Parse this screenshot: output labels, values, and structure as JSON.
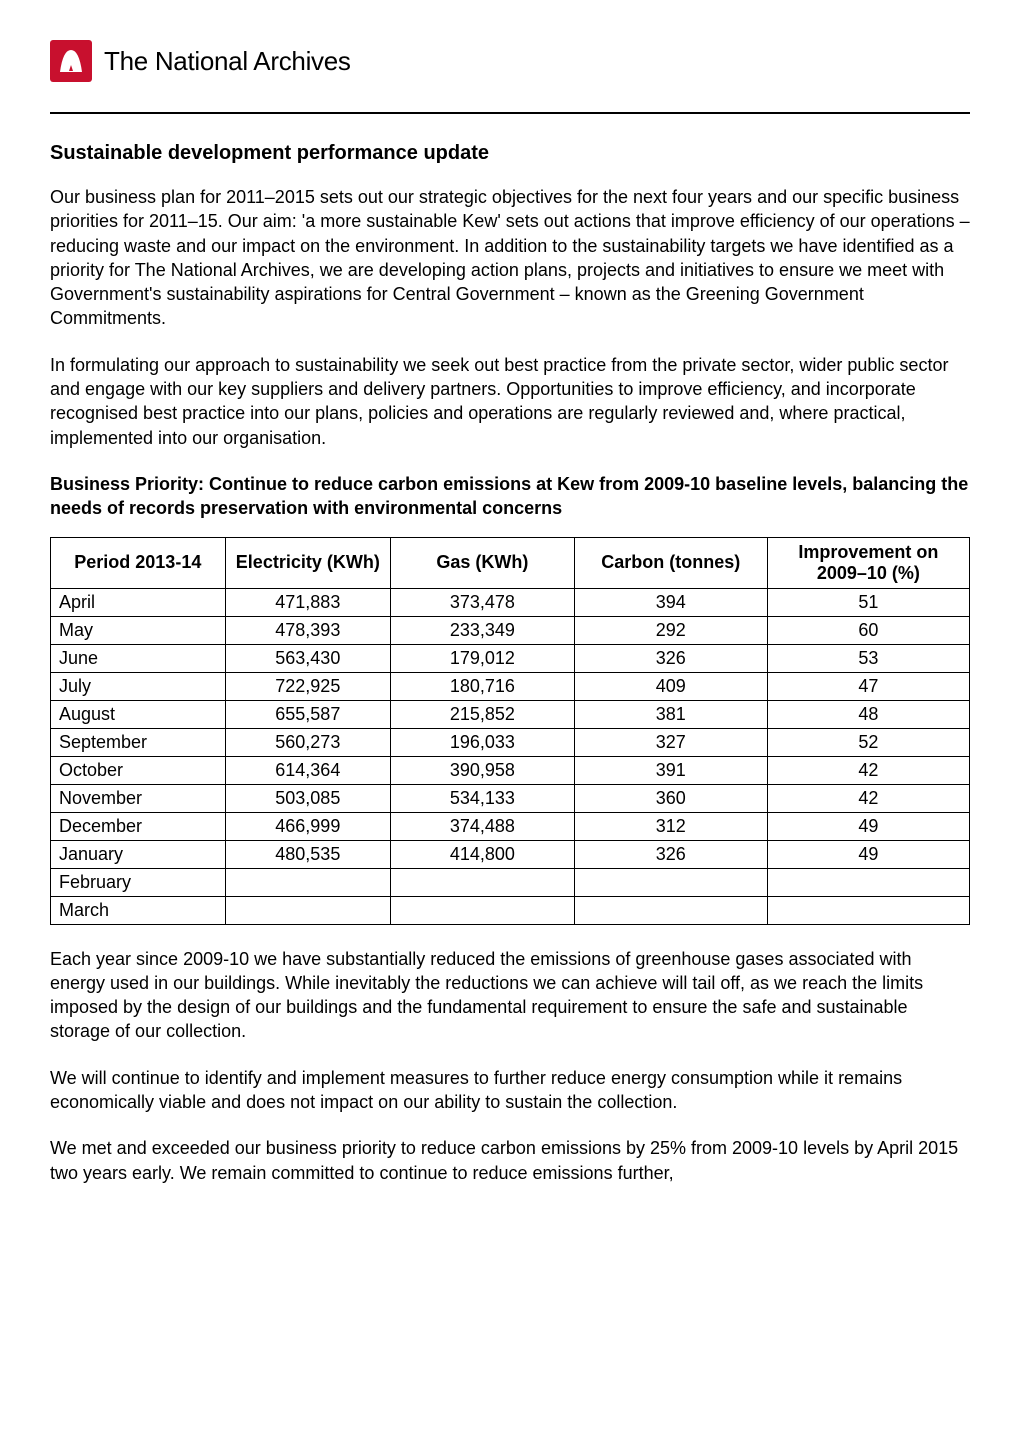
{
  "header": {
    "logo_text": "The National Archives",
    "logo_icon_color": "#c8102e"
  },
  "title": "Sustainable development performance update",
  "paragraphs": {
    "p1": "Our business plan for 2011–2015 sets out our strategic objectives for the next four years and our specific business priorities for 2011–15. Our aim: 'a more sustainable Kew' sets out actions that improve efficiency of our operations – reducing waste and our impact on the environment. In addition to the sustainability targets we have identified as a priority for The National Archives, we are developing action plans, projects and initiatives to ensure we meet with Government's sustainability aspirations for Central Government – known as the Greening Government Commitments.",
    "p2": "In formulating our approach to sustainability we seek out best practice from the private sector, wider public sector and engage with our key suppliers and delivery partners.  Opportunities to improve efficiency, and incorporate recognised best practice into our plans, policies and operations are regularly reviewed and, where practical, implemented into our organisation.",
    "p3": "Each year since 2009-10 we have substantially reduced the emissions of greenhouse gases associated with energy used in our buildings.  While inevitably the reductions we can achieve will tail off, as we reach the limits imposed by the design of our buildings and the fundamental requirement to ensure the safe and sustainable storage of our collection.",
    "p4": "We will continue to identify and implement measures to further reduce energy consumption while it remains economically viable and does not impact on our ability to sustain the collection.",
    "p5": "We met and exceeded our business priority to reduce carbon emissions by 25% from 2009-10 levels by April 2015 two years early. We remain committed to continue to reduce emissions further,"
  },
  "subtitle": "Business Priority: Continue to reduce carbon emissions at Kew from 2009-10 baseline levels, balancing the needs of records preservation with environmental concerns",
  "table": {
    "type": "table",
    "border_color": "#000000",
    "background_color": "#ffffff",
    "header_fontsize": 18,
    "cell_fontsize": 18,
    "columns": [
      "Period 2013-14",
      "Electricity (KWh)",
      "Gas (KWh)",
      "Carbon (tonnes)",
      "Improvement on 2009–10 (%)"
    ],
    "rows": [
      {
        "period": "April",
        "electricity": "471,883",
        "gas": "373,478",
        "carbon": "394",
        "improvement": "51"
      },
      {
        "period": "May",
        "electricity": "478,393",
        "gas": "233,349",
        "carbon": "292",
        "improvement": "60"
      },
      {
        "period": "June",
        "electricity": "563,430",
        "gas": "179,012",
        "carbon": "326",
        "improvement": "53"
      },
      {
        "period": "July",
        "electricity": "722,925",
        "gas": "180,716",
        "carbon": "409",
        "improvement": "47"
      },
      {
        "period": "August",
        "electricity": "655,587",
        "gas": "215,852",
        "carbon": "381",
        "improvement": "48"
      },
      {
        "period": "September",
        "electricity": "560,273",
        "gas": "196,033",
        "carbon": "327",
        "improvement": "52"
      },
      {
        "period": "October",
        "electricity": "614,364",
        "gas": "390,958",
        "carbon": "391",
        "improvement": "42"
      },
      {
        "period": "November",
        "electricity": "503,085",
        "gas": "534,133",
        "carbon": "360",
        "improvement": "42"
      },
      {
        "period": "December",
        "electricity": "466,999",
        "gas": "374,488",
        "carbon": "312",
        "improvement": "49"
      },
      {
        "period": "January",
        "electricity": "480,535",
        "gas": "414,800",
        "carbon": "326",
        "improvement": "49"
      },
      {
        "period": "February",
        "electricity": "",
        "gas": "",
        "carbon": "",
        "improvement": ""
      },
      {
        "period": "March",
        "electricity": "",
        "gas": "",
        "carbon": "",
        "improvement": ""
      }
    ]
  }
}
